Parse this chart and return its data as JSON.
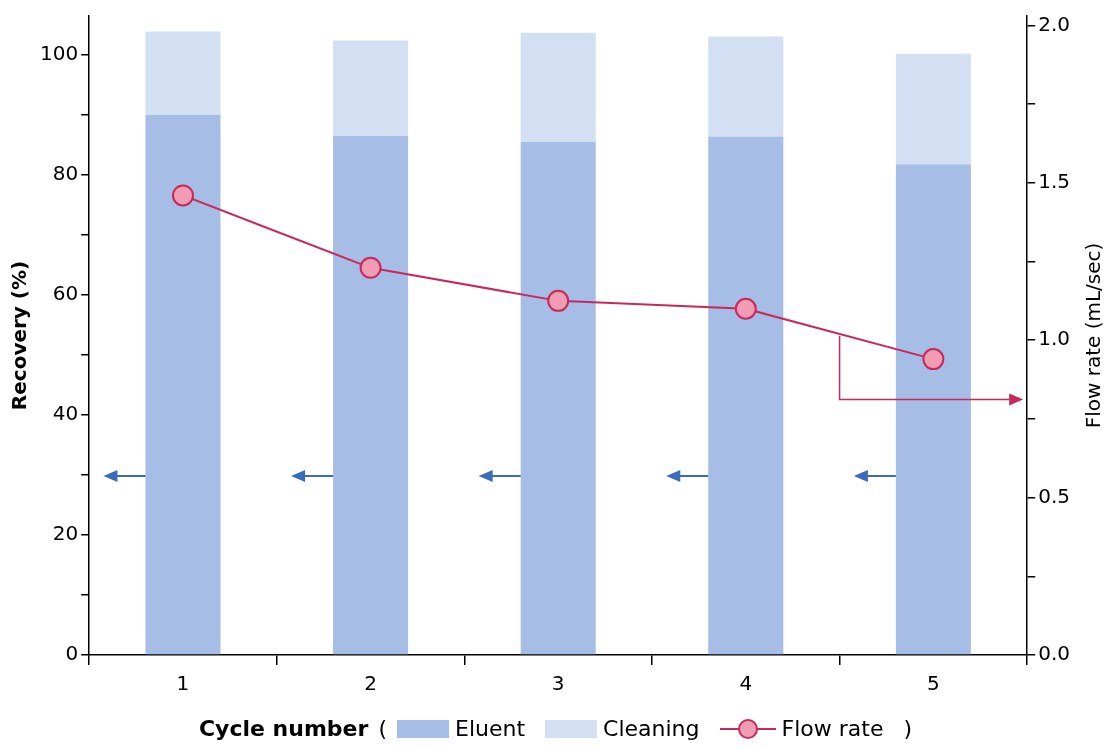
{
  "chart_data": {
    "type": "bar",
    "stacked": true,
    "xlabel": "Cycle number",
    "ylabel": "Recovery (%)",
    "y2label": "Flow rate (mL/sec)",
    "categories": [
      "1",
      "2",
      "3",
      "4",
      "5"
    ],
    "series": [
      {
        "name": "Eluent",
        "color": "#a6bde6",
        "values": [
          90,
          86.5,
          85.5,
          86.4,
          81.8
        ]
      },
      {
        "name": "Cleaning",
        "color": "#d3dff2",
        "values": [
          13.9,
          15.9,
          18.2,
          16.7,
          18.4
        ]
      },
      {
        "name": "Flow rate",
        "type": "line",
        "axis": "y2",
        "color": "#c8285a",
        "values": [
          1.46,
          1.23,
          1.125,
          1.1,
          0.94
        ]
      }
    ],
    "marker": "circle",
    "line_style": "solid",
    "grid": false,
    "legend": "bottom",
    "ylim": [
      0,
      106.5
    ],
    "yticks": [
      0,
      {
        "value": 10,
        "label": null
      },
      20,
      {
        "value": 30,
        "label": null
      },
      40,
      {
        "value": 50,
        "label": null
      },
      60,
      {
        "value": 70,
        "label": null
      },
      80,
      {
        "value": 90,
        "label": null
      },
      100
    ],
    "y2lim": [
      0,
      2.03
    ],
    "y2ticks": [
      {
        "value": 0,
        "label": "0.0"
      },
      {
        "value": 0.25,
        "label": null
      },
      {
        "value": 0.5,
        "label": "0.5"
      },
      {
        "value": 0.75,
        "label": null
      },
      {
        "value": 1,
        "label": "1.0"
      },
      {
        "value": 1.25,
        "label": null
      },
      {
        "value": 1.5,
        "label": "1.5"
      },
      {
        "value": 1.75,
        "label": null
      },
      {
        "value": 2,
        "label": "2.0"
      }
    ],
    "annotations": [
      "(",
      ")"
    ]
  }
}
